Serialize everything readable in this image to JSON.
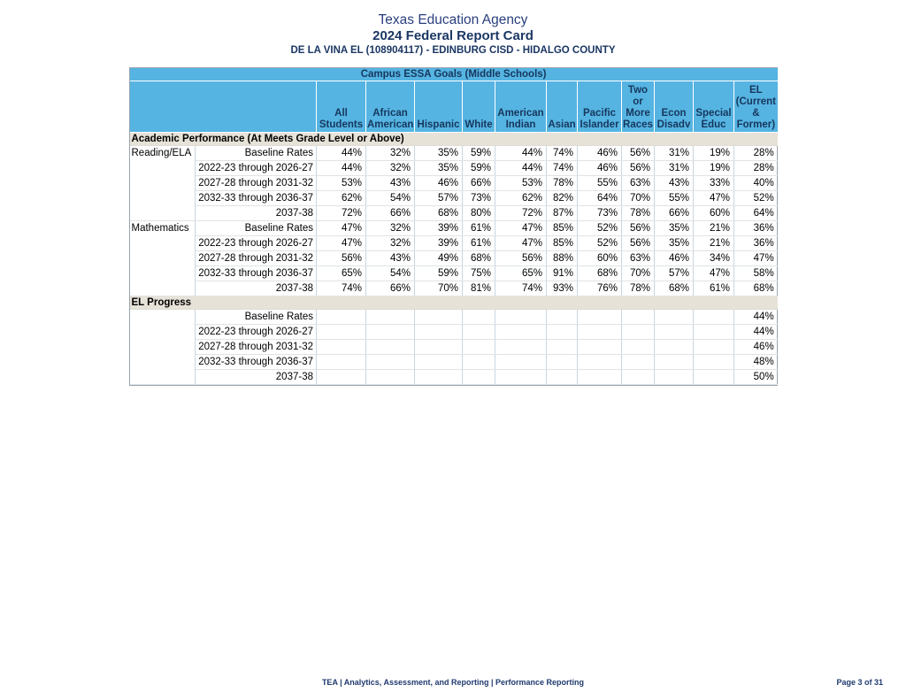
{
  "header": {
    "agency": "Texas Education Agency",
    "report_title": "2024 Federal Report Card",
    "campus_line": "DE LA VINA EL (108904117) - EDINBURG CISD - HIDALGO COUNTY"
  },
  "table": {
    "title": "Campus ESSA Goals (Middle Schools)",
    "columns": [
      "All Students",
      "African American",
      "Hispanic",
      "White",
      "American Indian",
      "Asian",
      "Pacific Islander",
      "Two or More Races",
      "Econ Disadv",
      "Special Educ",
      "EL (Current & Former)"
    ],
    "sections": [
      {
        "name": "Academic Performance (At Meets Grade Level or Above)",
        "groups": [
          {
            "label": "Reading/ELA",
            "rows": [
              {
                "label": "Baseline Rates",
                "values": [
                  "44%",
                  "32%",
                  "35%",
                  "59%",
                  "44%",
                  "74%",
                  "46%",
                  "56%",
                  "31%",
                  "19%",
                  "28%"
                ]
              },
              {
                "label": "2022-23 through 2026-27",
                "values": [
                  "44%",
                  "32%",
                  "35%",
                  "59%",
                  "44%",
                  "74%",
                  "46%",
                  "56%",
                  "31%",
                  "19%",
                  "28%"
                ]
              },
              {
                "label": "2027-28 through 2031-32",
                "values": [
                  "53%",
                  "43%",
                  "46%",
                  "66%",
                  "53%",
                  "78%",
                  "55%",
                  "63%",
                  "43%",
                  "33%",
                  "40%"
                ]
              },
              {
                "label": "2032-33 through 2036-37",
                "values": [
                  "62%",
                  "54%",
                  "57%",
                  "73%",
                  "62%",
                  "82%",
                  "64%",
                  "70%",
                  "55%",
                  "47%",
                  "52%"
                ]
              },
              {
                "label": "2037-38",
                "values": [
                  "72%",
                  "66%",
                  "68%",
                  "80%",
                  "72%",
                  "87%",
                  "73%",
                  "78%",
                  "66%",
                  "60%",
                  "64%"
                ]
              }
            ]
          },
          {
            "label": "Mathematics",
            "rows": [
              {
                "label": "Baseline Rates",
                "values": [
                  "47%",
                  "32%",
                  "39%",
                  "61%",
                  "47%",
                  "85%",
                  "52%",
                  "56%",
                  "35%",
                  "21%",
                  "36%"
                ]
              },
              {
                "label": "2022-23 through 2026-27",
                "values": [
                  "47%",
                  "32%",
                  "39%",
                  "61%",
                  "47%",
                  "85%",
                  "52%",
                  "56%",
                  "35%",
                  "21%",
                  "36%"
                ]
              },
              {
                "label": "2027-28 through 2031-32",
                "values": [
                  "56%",
                  "43%",
                  "49%",
                  "68%",
                  "56%",
                  "88%",
                  "60%",
                  "63%",
                  "46%",
                  "34%",
                  "47%"
                ]
              },
              {
                "label": "2032-33 through 2036-37",
                "values": [
                  "65%",
                  "54%",
                  "59%",
                  "75%",
                  "65%",
                  "91%",
                  "68%",
                  "70%",
                  "57%",
                  "47%",
                  "58%"
                ]
              },
              {
                "label": "2037-38",
                "values": [
                  "74%",
                  "66%",
                  "70%",
                  "81%",
                  "74%",
                  "93%",
                  "76%",
                  "78%",
                  "68%",
                  "61%",
                  "68%"
                ]
              }
            ]
          }
        ]
      },
      {
        "name": "EL Progress",
        "groups": [
          {
            "label": "",
            "rows": [
              {
                "label": "Baseline Rates",
                "values": [
                  "",
                  "",
                  "",
                  "",
                  "",
                  "",
                  "",
                  "",
                  "",
                  "",
                  "44%"
                ]
              },
              {
                "label": "2022-23 through 2026-27",
                "values": [
                  "",
                  "",
                  "",
                  "",
                  "",
                  "",
                  "",
                  "",
                  "",
                  "",
                  "44%"
                ]
              },
              {
                "label": "2027-28 through 2031-32",
                "values": [
                  "",
                  "",
                  "",
                  "",
                  "",
                  "",
                  "",
                  "",
                  "",
                  "",
                  "46%"
                ]
              },
              {
                "label": "2032-33 through 2036-37",
                "values": [
                  "",
                  "",
                  "",
                  "",
                  "",
                  "",
                  "",
                  "",
                  "",
                  "",
                  "48%"
                ]
              },
              {
                "label": "2037-38",
                "values": [
                  "",
                  "",
                  "",
                  "",
                  "",
                  "",
                  "",
                  "",
                  "",
                  "",
                  "50%"
                ]
              }
            ]
          }
        ]
      }
    ]
  },
  "footer": {
    "center": "TEA | Analytics, Assessment, and Reporting | Performance Reporting",
    "right": "Page 3 of 31"
  },
  "colors": {
    "header_blue": "#55B4E2",
    "navy_text": "#17375D",
    "section_beige": "#E7E2D8"
  }
}
